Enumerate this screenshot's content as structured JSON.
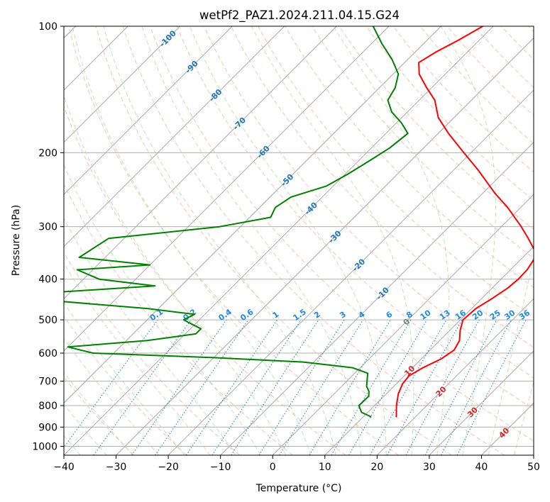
{
  "chart_data": {
    "type": "line",
    "title": "wetPf2_PAZ1.2024.211.04.15.G24",
    "xlabel": "Temperature (°C)",
    "ylabel": "Pressure (hPa)",
    "xlim": [
      -40,
      50
    ],
    "ylim": [
      1050,
      100
    ],
    "y_scale": "log",
    "x_ticks": [
      "−40",
      "−30",
      "−20",
      "−10",
      "0",
      "10",
      "20",
      "30",
      "40",
      "50"
    ],
    "y_ticks": [
      "100",
      "200",
      "300",
      "400",
      "500",
      "600",
      "700",
      "800",
      "900",
      "1000"
    ],
    "skew_angle_deg": 45,
    "isotherm_labels": [
      "-100",
      "-90",
      "-80",
      "-70",
      "-60",
      "-50",
      "-40",
      "-30",
      "-20",
      "-10",
      "0",
      "10",
      "20",
      "30",
      "40"
    ],
    "mixing_ratio_labels": [
      "0.1",
      "0.2",
      "0.4",
      "0.6",
      "1",
      "1.5",
      "2",
      "3",
      "4",
      "6",
      "8",
      "10",
      "13",
      "16",
      "20",
      "25",
      "30",
      "36"
    ],
    "series": [
      {
        "name": "",
        "role": "temperature",
        "color": "#ff0000",
        "points": [
          {
            "p": 850,
            "t": 16.3
          },
          {
            "p": 800,
            "t": 14.2
          },
          {
            "p": 750,
            "t": 12.3
          },
          {
            "p": 710,
            "t": 11.2
          },
          {
            "p": 680,
            "t": 10.9
          },
          {
            "p": 650,
            "t": 12.0
          },
          {
            "p": 620,
            "t": 13.8
          },
          {
            "p": 590,
            "t": 14.6
          },
          {
            "p": 560,
            "t": 13.8
          },
          {
            "p": 530,
            "t": 12.0
          },
          {
            "p": 500,
            "t": 10.5
          },
          {
            "p": 470,
            "t": 10.8
          },
          {
            "p": 445,
            "t": 12.0
          },
          {
            "p": 420,
            "t": 13.0
          },
          {
            "p": 400,
            "t": 13.3
          },
          {
            "p": 380,
            "t": 13.2
          },
          {
            "p": 350,
            "t": 12.2
          },
          {
            "p": 320,
            "t": 7.4
          },
          {
            "p": 300,
            "t": 3.8
          },
          {
            "p": 270,
            "t": -2.5
          },
          {
            "p": 250,
            "t": -7.6
          },
          {
            "p": 220,
            "t": -15.3
          },
          {
            "p": 200,
            "t": -21.4
          },
          {
            "p": 180,
            "t": -28.0
          },
          {
            "p": 165,
            "t": -33.0
          },
          {
            "p": 150,
            "t": -37.0
          },
          {
            "p": 140,
            "t": -41.0
          },
          {
            "p": 130,
            "t": -45.0
          },
          {
            "p": 122,
            "t": -47.3
          },
          {
            "p": 115,
            "t": -46.0
          },
          {
            "p": 108,
            "t": -44.0
          },
          {
            "p": 100,
            "t": -42.0
          }
        ]
      },
      {
        "name": "",
        "role": "dewpoint",
        "color": "#008000",
        "points": [
          {
            "p": 850,
            "t": 11.4
          },
          {
            "p": 830,
            "t": 8.8
          },
          {
            "p": 800,
            "t": 7.0
          },
          {
            "p": 760,
            "t": 7.1
          },
          {
            "p": 740,
            "t": 6.2
          },
          {
            "p": 720,
            "t": 4.8
          },
          {
            "p": 700,
            "t": 3.9
          },
          {
            "p": 670,
            "t": 2.5
          },
          {
            "p": 650,
            "t": -1.5
          },
          {
            "p": 630,
            "t": -12.0
          },
          {
            "p": 615,
            "t": -30.0
          },
          {
            "p": 600,
            "t": -54.0
          },
          {
            "p": 580,
            "t": -60.0
          },
          {
            "p": 560,
            "t": -46.0
          },
          {
            "p": 540,
            "t": -38.0
          },
          {
            "p": 525,
            "t": -38.0
          },
          {
            "p": 515,
            "t": -40.0
          },
          {
            "p": 500,
            "t": -43.0
          },
          {
            "p": 485,
            "t": -42.0
          },
          {
            "p": 470,
            "t": -52.0
          },
          {
            "p": 450,
            "t": -72.0
          },
          {
            "p": 430,
            "t": -73.0
          },
          {
            "p": 415,
            "t": -55.0
          },
          {
            "p": 400,
            "t": -67.0
          },
          {
            "p": 380,
            "t": -73.0
          },
          {
            "p": 370,
            "t": -60.0
          },
          {
            "p": 355,
            "t": -75.0
          },
          {
            "p": 320,
            "t": -73.0
          },
          {
            "p": 300,
            "t": -54.0
          },
          {
            "p": 285,
            "t": -46.0
          },
          {
            "p": 270,
            "t": -47.0
          },
          {
            "p": 255,
            "t": -46.0
          },
          {
            "p": 240,
            "t": -41.3
          },
          {
            "p": 225,
            "t": -39.5
          },
          {
            "p": 210,
            "t": -38.0
          },
          {
            "p": 195,
            "t": -36.5
          },
          {
            "p": 180,
            "t": -35.8
          },
          {
            "p": 170,
            "t": -39.0
          },
          {
            "p": 160,
            "t": -43.0
          },
          {
            "p": 150,
            "t": -46.0
          },
          {
            "p": 140,
            "t": -47.0
          },
          {
            "p": 130,
            "t": -49.0
          },
          {
            "p": 120,
            "t": -53.0
          },
          {
            "p": 110,
            "t": -58.0
          },
          {
            "p": 100,
            "t": -63.0
          }
        ]
      }
    ]
  }
}
